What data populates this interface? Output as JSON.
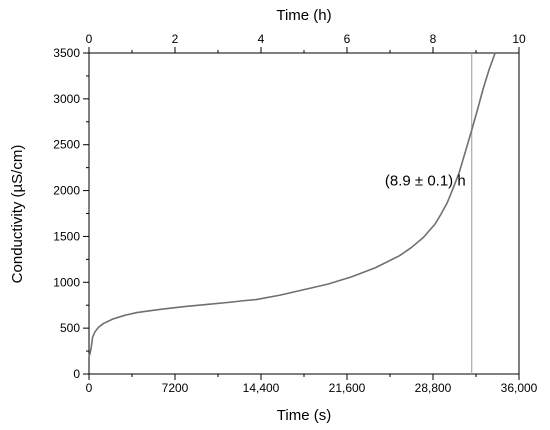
{
  "chart_data": {
    "type": "line",
    "title": "",
    "xlabel": "Time (s)",
    "x2label": "Time (h)",
    "ylabel": "Conductivity (µS/cm)",
    "xlim": [
      0,
      36000
    ],
    "x2lim": [
      0,
      10
    ],
    "ylim": [
      0,
      3500
    ],
    "xticks": [
      0,
      7200,
      14400,
      21600,
      28800,
      36000
    ],
    "xtick_labels": [
      "0",
      "7200",
      "14,400",
      "21,600",
      "28,800",
      "36,000"
    ],
    "x2ticks": [
      0,
      2,
      4,
      6,
      8,
      10
    ],
    "x2tick_labels": [
      "0",
      "2",
      "4",
      "6",
      "8",
      "10"
    ],
    "yticks": [
      0,
      500,
      1000,
      1500,
      2000,
      2500,
      3000,
      3500
    ],
    "ytick_labels": [
      "0",
      "500",
      "1000",
      "1500",
      "2000",
      "2500",
      "3000",
      "3500"
    ],
    "grid": false,
    "colors": {
      "line": "#707070",
      "vline": "#aaaaaa",
      "axis": "#000000"
    },
    "series": [
      {
        "x": [
          0,
          100,
          200,
          300,
          500,
          800,
          1200,
          2000,
          3000,
          4000,
          6000,
          8000,
          10000,
          12000,
          13000,
          14000,
          16000,
          18000,
          20000,
          22000,
          24000,
          26000,
          27000,
          28000,
          29000,
          29500,
          30000,
          30500,
          31000,
          31500,
          32000,
          32500,
          33000,
          33500,
          34000
        ],
        "y": [
          190,
          230,
          300,
          400,
          460,
          510,
          550,
          600,
          640,
          670,
          705,
          735,
          760,
          785,
          800,
          812,
          860,
          920,
          980,
          1060,
          1160,
          1290,
          1380,
          1490,
          1640,
          1750,
          1870,
          2030,
          2200,
          2420,
          2640,
          2870,
          3110,
          3320,
          3500
        ]
      }
    ],
    "vline": {
      "x": 32040
    },
    "annotation": {
      "text": "(8.9 ± 0.1) h",
      "x": 32040,
      "y": 2100
    }
  }
}
